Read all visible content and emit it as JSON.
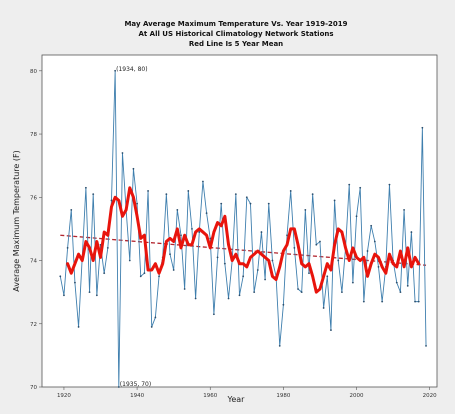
{
  "chart_data": {
    "type": "line",
    "title_lines": [
      "May Average Maximum Temperature Vs. Year 1919-2019",
      "At All US Historical Climatology Network Stations",
      "Red Line Is 5 Year Mean"
    ],
    "xlabel": "Year",
    "ylabel": "Average Maximum Temperature (F)",
    "xlim": [
      1914,
      2022
    ],
    "ylim": [
      70,
      80.5
    ],
    "xticks": [
      1920,
      1940,
      1960,
      1980,
      2000,
      2020
    ],
    "yticks": [
      70,
      72,
      74,
      76,
      78,
      80
    ],
    "grid": false,
    "colors": {
      "series": "#3f7fae",
      "mean": "#e8140c",
      "trend": "#b3262f",
      "frame": "#555555"
    },
    "series": [
      {
        "name": "",
        "x": [
          1919,
          1920,
          1921,
          1922,
          1923,
          1924,
          1925,
          1926,
          1927,
          1928,
          1929,
          1930,
          1931,
          1932,
          1933,
          1934,
          1935,
          1936,
          1937,
          1938,
          1939,
          1940,
          1941,
          1942,
          1943,
          1944,
          1945,
          1946,
          1947,
          1948,
          1949,
          1950,
          1951,
          1952,
          1953,
          1954,
          1955,
          1956,
          1957,
          1958,
          1959,
          1960,
          1961,
          1962,
          1963,
          1964,
          1965,
          1966,
          1967,
          1968,
          1969,
          1970,
          1971,
          1972,
          1973,
          1974,
          1975,
          1976,
          1977,
          1978,
          1979,
          1980,
          1981,
          1982,
          1983,
          1984,
          1985,
          1986,
          1987,
          1988,
          1989,
          1990,
          1991,
          1992,
          1993,
          1994,
          1995,
          1996,
          1997,
          1998,
          1999,
          2000,
          2001,
          2002,
          2003,
          2004,
          2005,
          2006,
          2007,
          2008,
          2009,
          2010,
          2011,
          2012,
          2013,
          2014,
          2015,
          2016,
          2017,
          2018,
          2019
        ],
        "y": [
          73.5,
          72.9,
          74.4,
          75.6,
          73.3,
          71.9,
          74.1,
          76.3,
          73.0,
          76.1,
          72.9,
          74.5,
          73.6,
          74.4,
          75.9,
          80.0,
          70.0,
          77.4,
          75.6,
          74.0,
          76.9,
          75.8,
          73.5,
          73.6,
          76.2,
          71.9,
          72.2,
          73.5,
          74.1,
          76.1,
          74.2,
          73.7,
          75.6,
          74.8,
          73.1,
          76.2,
          75.0,
          72.8,
          74.9,
          76.5,
          75.5,
          74.7,
          72.3,
          74.1,
          75.8,
          73.9,
          72.8,
          74.0,
          76.1,
          72.9,
          73.5,
          76.0,
          75.8,
          73.0,
          73.7,
          74.9,
          73.4,
          75.8,
          74.0,
          73.5,
          71.3,
          72.6,
          74.8,
          76.2,
          74.4,
          73.1,
          73.0,
          75.6,
          73.6,
          76.1,
          74.5,
          74.6,
          72.5,
          73.5,
          71.8,
          75.9,
          74.0,
          73.0,
          74.4,
          76.4,
          73.3,
          75.4,
          76.3,
          72.7,
          74.3,
          75.1,
          74.6,
          73.8,
          72.7,
          73.8,
          76.4,
          74.0,
          73.3,
          73.0,
          75.6,
          73.2,
          74.9,
          72.7,
          72.7,
          78.2,
          71.3
        ]
      },
      {
        "name": "",
        "x": [
          1921,
          1922,
          1923,
          1924,
          1925,
          1926,
          1927,
          1928,
          1929,
          1930,
          1931,
          1932,
          1933,
          1934,
          1935,
          1936,
          1937,
          1938,
          1939,
          1940,
          1941,
          1942,
          1943,
          1944,
          1945,
          1946,
          1947,
          1948,
          1949,
          1950,
          1951,
          1952,
          1953,
          1954,
          1955,
          1956,
          1957,
          1958,
          1959,
          1960,
          1961,
          1962,
          1963,
          1964,
          1965,
          1966,
          1967,
          1968,
          1969,
          1970,
          1971,
          1972,
          1973,
          1974,
          1975,
          1976,
          1977,
          1978,
          1979,
          1980,
          1981,
          1982,
          1983,
          1984,
          1985,
          1986,
          1987,
          1988,
          1989,
          1990,
          1991,
          1992,
          1993,
          1994,
          1995,
          1996,
          1997,
          1998,
          1999,
          2000,
          2001,
          2002,
          2003,
          2004,
          2005,
          2006,
          2007,
          2008,
          2009,
          2010,
          2011,
          2012,
          2013,
          2014,
          2015,
          2016,
          2017
        ],
        "y": [
          73.9,
          73.6,
          73.9,
          74.2,
          74.0,
          74.6,
          74.4,
          74.0,
          74.6,
          74.1,
          74.9,
          74.8,
          75.7,
          76.0,
          75.9,
          75.4,
          75.6,
          76.3,
          76.0,
          75.4,
          74.7,
          74.8,
          73.7,
          73.7,
          73.9,
          73.6,
          73.9,
          74.6,
          74.7,
          74.6,
          75.0,
          74.4,
          74.8,
          74.5,
          74.5,
          74.9,
          75.0,
          74.9,
          74.8,
          74.4,
          74.9,
          75.2,
          75.1,
          75.4,
          74.5,
          74.0,
          74.2,
          73.9,
          73.9,
          73.8,
          74.1,
          74.2,
          74.3,
          74.2,
          74.1,
          74.0,
          73.5,
          73.4,
          73.8,
          74.3,
          74.5,
          75.0,
          75.0,
          74.5,
          73.9,
          73.8,
          73.9,
          73.5,
          73.0,
          73.1,
          73.5,
          73.9,
          73.7,
          74.5,
          75.0,
          74.9,
          74.4,
          74.0,
          74.4,
          74.1,
          74.0,
          74.1,
          73.5,
          73.9,
          74.2,
          74.1,
          73.8,
          73.6,
          74.2,
          73.9,
          73.8,
          74.3,
          73.8,
          74.4,
          73.8,
          74.1,
          73.9
        ]
      }
    ],
    "trend": {
      "x": [
        1919,
        2019
      ],
      "y": [
        74.8,
        73.85
      ]
    },
    "annotations": [
      {
        "text": "(1934, 80)",
        "x": 1934,
        "y": 80
      },
      {
        "text": "(1935, 70)",
        "x": 1935,
        "y": 70
      }
    ]
  }
}
